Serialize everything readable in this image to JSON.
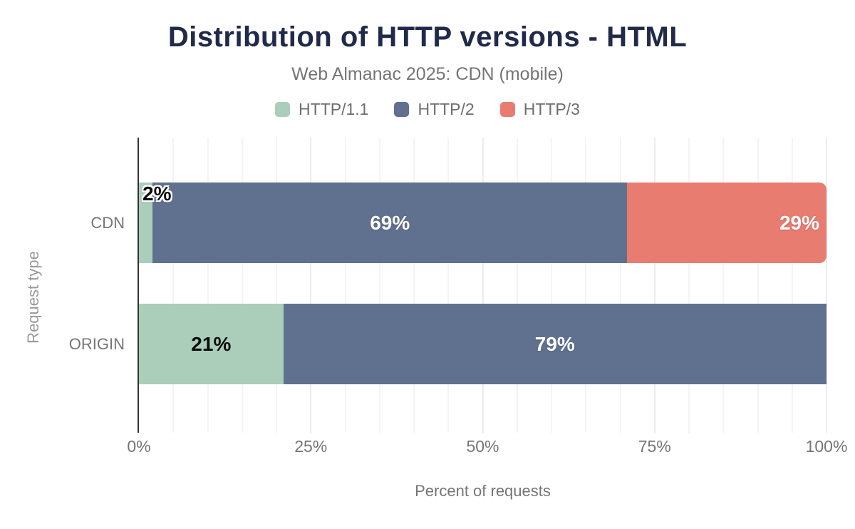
{
  "chart_data": {
    "type": "bar",
    "orientation": "horizontal",
    "stacked": true,
    "title": "Distribution of HTTP versions - HTML",
    "subtitle": "Web Almanac 2025: CDN (mobile)",
    "categories": [
      "CDN",
      "ORIGIN"
    ],
    "series": [
      {
        "name": "HTTP/1.1",
        "color": "#aaceba",
        "values": [
          2,
          21
        ]
      },
      {
        "name": "HTTP/2",
        "color": "#60718f",
        "values": [
          69,
          79
        ]
      },
      {
        "name": "HTTP/3",
        "color": "#e97c71",
        "values": [
          29,
          0
        ]
      }
    ],
    "data_labels": [
      [
        {
          "text": "2%",
          "style": "dark",
          "placement": "overflow-start",
          "halo": true
        },
        {
          "text": "69%",
          "style": "white",
          "placement": "center"
        },
        {
          "text": "29%",
          "style": "white",
          "placement": "end",
          "rounded_end": true
        }
      ],
      [
        {
          "text": "21%",
          "style": "dark",
          "placement": "center"
        },
        {
          "text": "79%",
          "style": "white",
          "placement": "center"
        },
        null
      ]
    ],
    "xlabel": "Percent of requests",
    "ylabel": "Request type",
    "xlim": [
      0,
      100
    ],
    "x_ticks": [
      {
        "value": 0,
        "label": "0%"
      },
      {
        "value": 25,
        "label": "25%"
      },
      {
        "value": 50,
        "label": "50%"
      },
      {
        "value": 75,
        "label": "75%"
      },
      {
        "value": 100,
        "label": "100%"
      }
    ],
    "grid": {
      "minor_step": 5,
      "major_step": 25
    },
    "legend_position": "top",
    "colors": {
      "title_text": "#212a4a",
      "axis_text": "#757575",
      "axis_line": "#333333",
      "grid_minor": "#f4f4f4",
      "grid_major": "#ececec",
      "background": "#ffffff"
    }
  }
}
